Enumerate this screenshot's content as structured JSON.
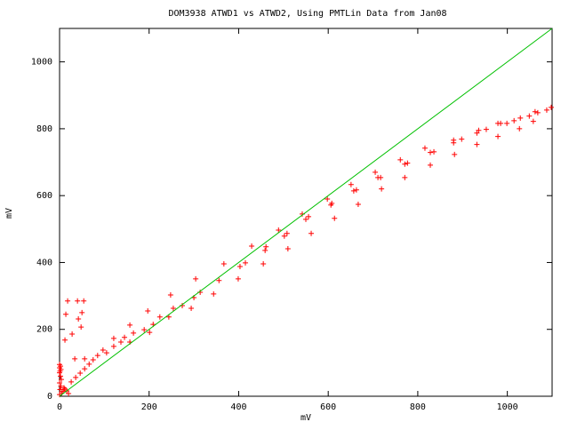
{
  "chart_data": {
    "type": "scatter",
    "title": "DOM3938 ATWD1 vs ATWD2, Using PMTLin Data from Jan08",
    "x_label": "mV",
    "y_label": "mV",
    "xlim": [
      0,
      1100
    ],
    "ylim": [
      0,
      1100
    ],
    "xticks": [
      0,
      200,
      400,
      600,
      800,
      1000
    ],
    "yticks": [
      0,
      200,
      400,
      600,
      800,
      1000
    ],
    "series": [
      {
        "type": "scatter",
        "color": "#ff0000",
        "x": [
          0,
          2,
          0,
          3,
          1,
          0,
          2,
          4,
          0,
          3,
          1,
          5,
          0,
          8,
          10,
          16,
          20,
          12,
          12,
          14,
          18,
          28,
          40,
          42,
          48,
          54,
          50,
          34,
          56,
          26,
          36,
          46,
          56,
          66,
          75,
          85,
          97,
          105,
          121,
          121,
          137,
          145,
          157,
          157,
          165,
          189,
          197,
          201,
          209,
          224,
          244,
          248,
          254,
          274,
          294,
          300,
          304,
          314,
          344,
          356,
          367,
          399,
          403,
          415,
          429,
          455,
          459,
          461,
          489,
          502,
          508,
          510,
          542,
          550,
          556,
          562,
          598,
          606,
          608,
          614,
          651,
          657,
          663,
          667,
          705,
          711,
          717,
          719,
          761,
          771,
          777,
          771,
          816,
          828,
          836,
          828,
          880,
          880,
          882,
          898,
          932,
          936,
          932,
          953,
          979,
          985,
          979,
          999,
          1015,
          1029,
          1027,
          1049,
          1062,
          1058,
          1068,
          1088,
          1098
        ],
        "values": [
          95,
          90,
          85,
          80,
          75,
          70,
          60,
          50,
          40,
          30,
          20,
          10,
          5,
          15,
          25,
          16,
          8,
          21,
          168,
          245,
          285,
          186,
          285,
          231,
          207,
          285,
          250,
          112,
          112,
          43,
          56,
          69,
          82,
          96,
          109,
          122,
          138,
          130,
          173,
          149,
          162,
          176,
          213,
          162,
          189,
          199,
          255,
          191,
          215,
          237,
          237,
          303,
          263,
          271,
          263,
          295,
          351,
          311,
          306,
          346,
          396,
          351,
          388,
          399,
          449,
          396,
          436,
          447,
          497,
          479,
          487,
          441,
          545,
          529,
          537,
          487,
          590,
          572,
          577,
          532,
          633,
          614,
          617,
          574,
          670,
          654,
          654,
          620,
          707,
          694,
          697,
          654,
          742,
          729,
          731,
          691,
          766,
          758,
          723,
          769,
          787,
          795,
          753,
          798,
          816,
          816,
          777,
          816,
          824,
          832,
          800,
          838,
          851,
          822,
          848,
          856,
          864
        ]
      },
      {
        "type": "line",
        "color": "#00c000",
        "x": [
          0,
          1100
        ],
        "values": [
          0,
          1100
        ]
      }
    ]
  }
}
